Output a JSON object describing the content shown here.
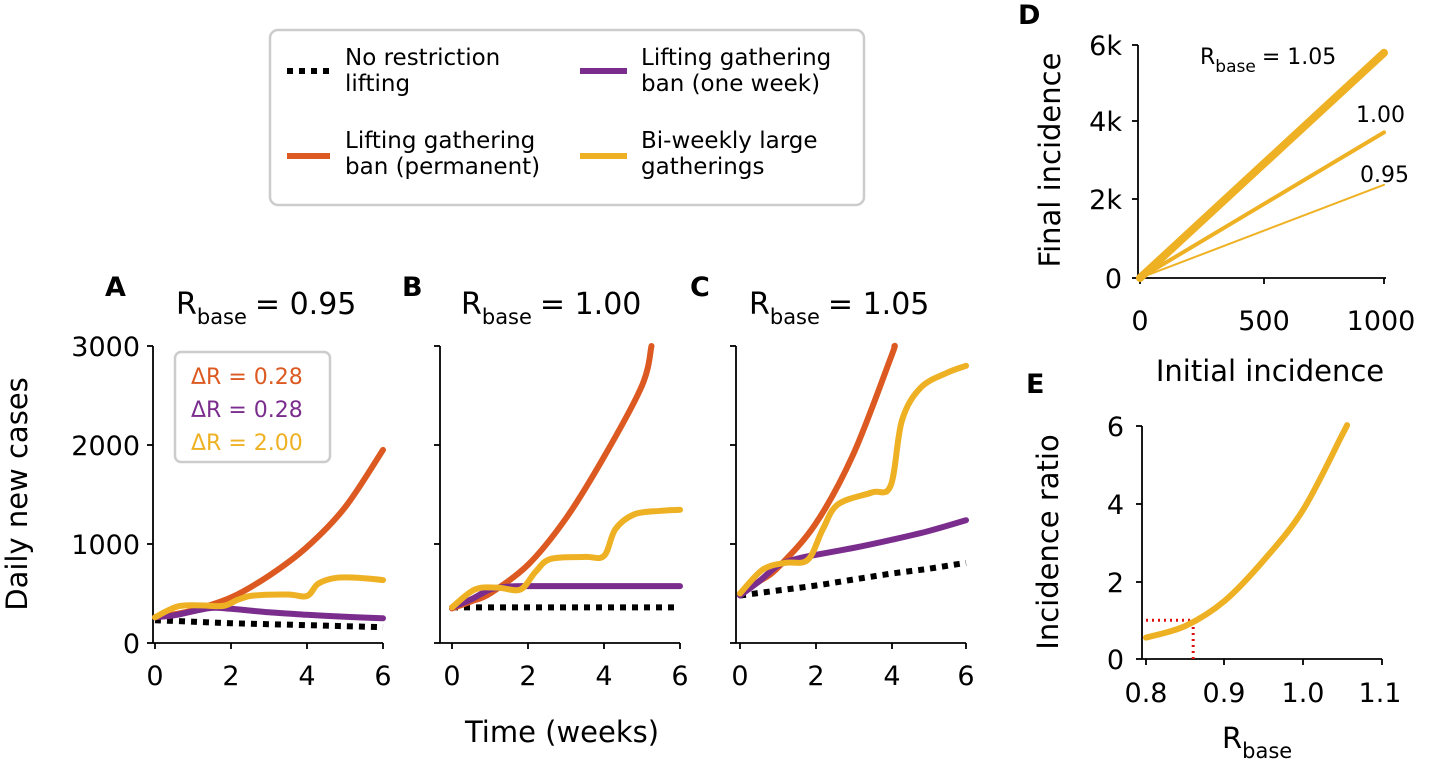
{
  "colors": {
    "none": "#000000",
    "perm": "#dc5a21",
    "week": "#7b2d8e",
    "gath": "#eeb124",
    "marker": "#e01010"
  },
  "legend": {
    "items": [
      {
        "key": "none",
        "line1": "No restriction",
        "line2": "lifting"
      },
      {
        "key": "week",
        "line1": "Lifting gathering",
        "line2": "ban (one week)"
      },
      {
        "key": "perm",
        "line1": "Lifting gathering",
        "line2": "ban (permanent)"
      },
      {
        "key": "gath",
        "line1": "Bi-weekly large",
        "line2": "gatherings"
      }
    ]
  },
  "shared_axes": {
    "ylabel": "Daily new cases",
    "xlabel": "Time (weeks)",
    "yticks": [
      "0",
      "1000",
      "2000",
      "3000"
    ],
    "xticks": [
      "0",
      "2",
      "4",
      "6"
    ]
  },
  "rbase_prefix": "R",
  "rbase_sub": "base",
  "delta_box": [
    {
      "key": "perm",
      "text": "ΔR = 0.28"
    },
    {
      "key": "week",
      "text": "ΔR = 0.28"
    },
    {
      "key": "gath",
      "text": "ΔR = 2.00"
    }
  ],
  "panel_d_labels": {
    "r105": "= 1.05",
    "r100": "1.00",
    "r095": "0.95"
  },
  "chart_data": [
    {
      "panel": "A",
      "type": "line",
      "title_value": "= 0.95",
      "xlabel": "Time (weeks)",
      "ylabel": "Daily new cases",
      "xlim": [
        0,
        6
      ],
      "ylim": [
        0,
        3000
      ],
      "series": [
        {
          "name": "No restriction lifting",
          "key": "none",
          "style": "dotted",
          "points": [
            [
              0,
              230
            ],
            [
              1,
              215
            ],
            [
              2,
              200
            ],
            [
              3,
              190
            ],
            [
              4,
              180
            ],
            [
              5,
              170
            ],
            [
              6,
              160
            ]
          ]
        },
        {
          "name": "Lifting gathering ban (permanent)",
          "key": "perm",
          "points": [
            [
              0,
              260
            ],
            [
              0.5,
              290
            ],
            [
              1,
              330
            ],
            [
              2,
              460
            ],
            [
              3,
              680
            ],
            [
              4,
              970
            ],
            [
              5,
              1370
            ],
            [
              6,
              1950
            ]
          ]
        },
        {
          "name": "Lifting gathering ban (one week)",
          "key": "week",
          "points": [
            [
              0,
              260
            ],
            [
              0.5,
              280
            ],
            [
              1,
              320
            ],
            [
              1.5,
              355
            ],
            [
              2,
              345
            ],
            [
              3,
              310
            ],
            [
              4,
              285
            ],
            [
              5,
              265
            ],
            [
              6,
              250
            ]
          ]
        },
        {
          "name": "Bi-weekly large gatherings",
          "key": "gath",
          "points": [
            [
              0,
              260
            ],
            [
              0.6,
              370
            ],
            [
              1.2,
              380
            ],
            [
              1.8,
              375
            ],
            [
              2.2,
              440
            ],
            [
              2.6,
              480
            ],
            [
              3.5,
              490
            ],
            [
              4,
              475
            ],
            [
              4.3,
              600
            ],
            [
              4.8,
              660
            ],
            [
              5.5,
              655
            ],
            [
              6,
              635
            ]
          ]
        }
      ]
    },
    {
      "panel": "B",
      "type": "line",
      "title_value": "= 1.00",
      "xlabel": "Time (weeks)",
      "ylabel": "Daily new cases",
      "xlim": [
        0,
        6
      ],
      "ylim": [
        0,
        3000
      ],
      "series": [
        {
          "name": "No restriction lifting",
          "key": "none",
          "style": "dotted",
          "points": [
            [
              0,
              360
            ],
            [
              6,
              360
            ]
          ]
        },
        {
          "name": "Lifting gathering ban (permanent)",
          "key": "perm",
          "points": [
            [
              0,
              350
            ],
            [
              0.5,
              420
            ],
            [
              1,
              500
            ],
            [
              2,
              790
            ],
            [
              3,
              1260
            ],
            [
              4,
              1880
            ],
            [
              5,
              2600
            ],
            [
              5.25,
              3000
            ]
          ]
        },
        {
          "name": "Lifting gathering ban (one week)",
          "key": "week",
          "points": [
            [
              0,
              360
            ],
            [
              0.5,
              440
            ],
            [
              1,
              540
            ],
            [
              1.5,
              570
            ],
            [
              2,
              575
            ],
            [
              3,
              575
            ],
            [
              4,
              575
            ],
            [
              5,
              575
            ],
            [
              6,
              575
            ]
          ]
        },
        {
          "name": "Bi-weekly large gatherings",
          "key": "gath",
          "points": [
            [
              0,
              360
            ],
            [
              0.6,
              540
            ],
            [
              1.2,
              560
            ],
            [
              1.8,
              540
            ],
            [
              2.2,
              720
            ],
            [
              2.6,
              850
            ],
            [
              3.5,
              870
            ],
            [
              4,
              880
            ],
            [
              4.3,
              1150
            ],
            [
              4.8,
              1300
            ],
            [
              5.5,
              1335
            ],
            [
              6,
              1345
            ]
          ]
        }
      ]
    },
    {
      "panel": "C",
      "type": "line",
      "title_value": "= 1.05",
      "xlabel": "Time (weeks)",
      "ylabel": "Daily new cases",
      "xlim": [
        0,
        6
      ],
      "ylim": [
        0,
        3000
      ],
      "series": [
        {
          "name": "No restriction lifting",
          "key": "none",
          "style": "dotted",
          "points": [
            [
              0,
              480
            ],
            [
              1,
              530
            ],
            [
              2,
              580
            ],
            [
              3,
              640
            ],
            [
              4,
              700
            ],
            [
              5,
              750
            ],
            [
              6,
              810
            ]
          ]
        },
        {
          "name": "Lifting gathering ban (permanent)",
          "key": "perm",
          "points": [
            [
              0,
              500
            ],
            [
              0.5,
              620
            ],
            [
              1,
              760
            ],
            [
              2,
              1200
            ],
            [
              3,
              1900
            ],
            [
              4,
              2880
            ],
            [
              4.1,
              3000
            ]
          ]
        },
        {
          "name": "Lifting gathering ban (one week)",
          "key": "week",
          "points": [
            [
              0,
              480
            ],
            [
              0.5,
              620
            ],
            [
              1,
              780
            ],
            [
              1.5,
              850
            ],
            [
              2,
              890
            ],
            [
              3,
              960
            ],
            [
              4,
              1040
            ],
            [
              5,
              1130
            ],
            [
              6,
              1240
            ]
          ]
        },
        {
          "name": "Bi-weekly large gatherings",
          "key": "gath",
          "points": [
            [
              0,
              500
            ],
            [
              0.6,
              740
            ],
            [
              1.2,
              810
            ],
            [
              1.8,
              840
            ],
            [
              2.2,
              1150
            ],
            [
              2.6,
              1400
            ],
            [
              3.5,
              1520
            ],
            [
              4,
              1590
            ],
            [
              4.3,
              2250
            ],
            [
              4.8,
              2580
            ],
            [
              5.5,
              2730
            ],
            [
              6,
              2800
            ]
          ]
        }
      ]
    },
    {
      "panel": "D",
      "type": "line",
      "xlabel": "Initial incidence",
      "ylabel": "Final incidence",
      "xlim": [
        0,
        1000
      ],
      "ylim": [
        0,
        6000
      ],
      "xticks": [
        "0",
        "500",
        "1000"
      ],
      "yticks": [
        "0",
        "2k",
        "4k",
        "6k"
      ],
      "series": [
        {
          "name": "R_base = 1.05",
          "key": "gath",
          "width": 8,
          "points": [
            [
              0,
              0
            ],
            [
              1000,
              5800
            ]
          ]
        },
        {
          "name": "1.00",
          "key": "gath",
          "width": 4,
          "points": [
            [
              0,
              0
            ],
            [
              1000,
              3750
            ]
          ]
        },
        {
          "name": "0.95",
          "key": "gath",
          "width": 2,
          "points": [
            [
              0,
              0
            ],
            [
              1000,
              2400
            ]
          ]
        }
      ]
    },
    {
      "panel": "E",
      "type": "line",
      "xlabel": "R_base",
      "ylabel": "Incidence ratio",
      "xlim": [
        0.8,
        1.1
      ],
      "ylim": [
        0,
        6
      ],
      "xticks": [
        "0.8",
        "0.9",
        "1.0",
        "1.1"
      ],
      "yticks": [
        "0",
        "2",
        "4",
        "6"
      ],
      "series": [
        {
          "name": "Incidence ratio",
          "key": "gath",
          "points": [
            [
              0.8,
              0.55
            ],
            [
              0.85,
              0.85
            ],
            [
              0.9,
              1.5
            ],
            [
              0.95,
              2.55
            ],
            [
              1.0,
              3.85
            ],
            [
              1.05,
              5.8
            ],
            [
              1.055,
              6.0
            ]
          ]
        }
      ],
      "reference": {
        "x": 0.86,
        "y": 1.0
      }
    }
  ]
}
